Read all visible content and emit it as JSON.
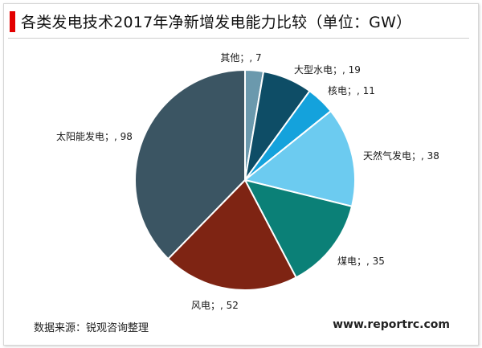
{
  "title": "各类发电技术2017年净新增发电能力比较（单位：GW）",
  "source": "数据来源：锐观咨询整理",
  "website": "www.reportrc.com",
  "chart_data": {
    "type": "pie",
    "title": "各类发电技术2017年净新增发电能力比较（单位：GW）",
    "unit": "GW",
    "start_angle": "12 o'clock",
    "direction": "clockwise",
    "slices": [
      {
        "name": "其他",
        "value": 7,
        "label": "其他；, 7",
        "color": "#6b99ad"
      },
      {
        "name": "大型水电",
        "value": 19,
        "label": "大型水电；, 19",
        "color": "#0e4d66"
      },
      {
        "name": "核电",
        "value": 11,
        "label": "核电；, 11",
        "color": "#14a2dc"
      },
      {
        "name": "天然气发电",
        "value": 38,
        "label": "天然气发电；, 38",
        "color": "#6ccbf0"
      },
      {
        "name": "煤电",
        "value": 35,
        "label": "煤电；, 35",
        "color": "#0b8077"
      },
      {
        "name": "风电",
        "value": 52,
        "label": "风电；, 52",
        "color": "#7e2413"
      },
      {
        "name": "太阳能发电",
        "value": 98,
        "label": "太阳能发电；, 98",
        "color": "#3b5563"
      }
    ]
  }
}
